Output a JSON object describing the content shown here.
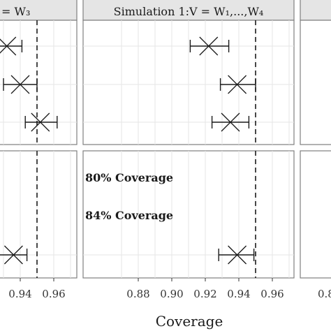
{
  "chart_data": {
    "type": "scatter",
    "xlabel": "Coverage",
    "xlim": [
      0.87,
      0.97
    ],
    "xticks": [
      "0.88",
      "0.90",
      "0.92",
      "0.94",
      "0.96"
    ],
    "reference_line": 0.95,
    "annotations": [
      "80% Coverage",
      "84% Coverage"
    ],
    "panels": [
      {
        "id": "top-left",
        "strip": "= W₃",
        "points": [
          {
            "x": 0.932,
            "lo": 0.925,
            "hi": 0.941
          },
          {
            "x": 0.94,
            "lo": 0.93,
            "hi": 0.95
          },
          {
            "x": 0.952,
            "lo": 0.943,
            "hi": 0.962
          }
        ]
      },
      {
        "id": "top-middle",
        "strip": "Simulation 1:V = W₁,...,W₄",
        "points": [
          {
            "x": 0.922,
            "lo": 0.911,
            "hi": 0.934
          },
          {
            "x": 0.939,
            "lo": 0.929,
            "hi": 0.95
          },
          {
            "x": 0.935,
            "lo": 0.924,
            "hi": 0.946
          }
        ]
      },
      {
        "id": "bottom-left",
        "strip": "",
        "points": [
          {
            "x": 0.936,
            "lo": 0.925,
            "hi": 0.944
          }
        ]
      },
      {
        "id": "bottom-middle",
        "strip": "",
        "points": [
          {
            "x": 0.939,
            "lo": 0.928,
            "hi": 0.949
          }
        ]
      }
    ]
  }
}
